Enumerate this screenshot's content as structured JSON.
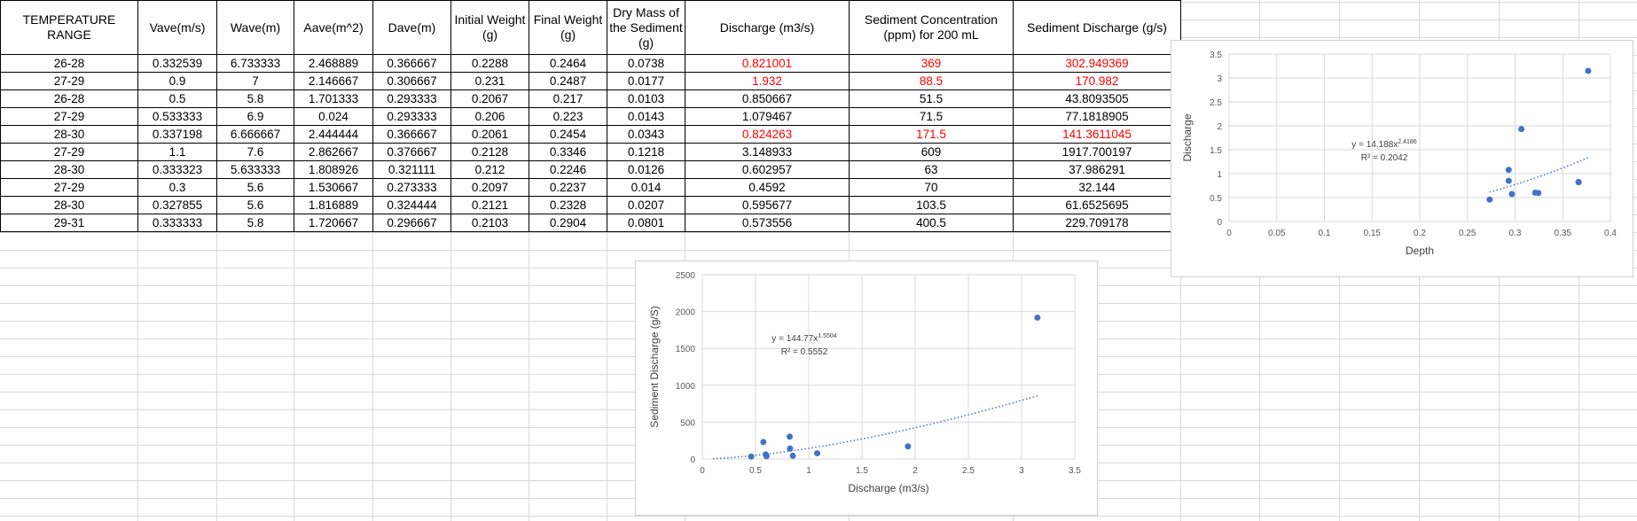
{
  "table": {
    "headers": [
      "TEMPERATURE RANGE",
      "Vave(m/s)",
      "Wave(m)",
      "Aave(m^2)",
      "Dave(m)",
      "Initial Weight (g)",
      "Final Weight (g)",
      "Dry Mass of the Sediment (g)",
      "Discharge (m3/s)",
      "Sediment Concentration (ppm) for 200 mL",
      "Sediment Discharge (g/s)"
    ],
    "rows": [
      [
        "26-28",
        "0.332539",
        "6.733333",
        "2.468889",
        "0.366667",
        "0.2288",
        "0.2464",
        "0.0738",
        "0.821001",
        "369",
        "302.949369"
      ],
      [
        "27-29",
        "0.9",
        "7",
        "2.146667",
        "0.306667",
        "0.231",
        "0.2487",
        "0.0177",
        "1.932",
        "88.5",
        "170.982"
      ],
      [
        "26-28",
        "0.5",
        "5.8",
        "1.701333",
        "0.293333",
        "0.2067",
        "0.217",
        "0.0103",
        "0.850667",
        "51.5",
        "43.8093505"
      ],
      [
        "27-29",
        "0.533333",
        "6.9",
        "0.024",
        "0.293333",
        "0.206",
        "0.223",
        "0.0143",
        "1.079467",
        "71.5",
        "77.1818905"
      ],
      [
        "28-30",
        "0.337198",
        "6.666667",
        "2.444444",
        "0.366667",
        "0.2061",
        "0.2454",
        "0.0343",
        "0.824263",
        "171.5",
        "141.3611045"
      ],
      [
        "27-29",
        "1.1",
        "7.6",
        "2.862667",
        "0.376667",
        "0.2128",
        "0.3346",
        "0.1218",
        "3.148933",
        "609",
        "1917.700197"
      ],
      [
        "28-30",
        "0.333323",
        "5.633333",
        "1.808926",
        "0.321111",
        "0.212",
        "0.2246",
        "0.0126",
        "0.602957",
        "63",
        "37.986291"
      ],
      [
        "27-29",
        "0.3",
        "5.6",
        "1.530667",
        "0.273333",
        "0.2097",
        "0.2237",
        "0.014",
        "0.4592",
        "70",
        "32.144"
      ],
      [
        "28-30",
        "0.327855",
        "5.6",
        "1.816889",
        "0.324444",
        "0.2121",
        "0.2328",
        "0.0207",
        "0.595677",
        "103.5",
        "61.6525695"
      ],
      [
        "29-31",
        "0.333333",
        "5.8",
        "1.720667",
        "0.296667",
        "0.2103",
        "0.2904",
        "0.0801",
        "0.573556",
        "400.5",
        "229.709178"
      ]
    ],
    "red_rows": [
      0,
      1,
      4
    ],
    "red_cols": [
      8,
      9,
      10
    ],
    "red_color": "#ff0000"
  },
  "chart_data": [
    {
      "type": "scatter",
      "xlabel": "Depth",
      "ylabel": "Discharge",
      "xlim": [
        0,
        0.4
      ],
      "ylim": [
        0,
        3.5
      ],
      "xticks": [
        "0",
        "0.05",
        "0.1",
        "0.15",
        "0.2",
        "0.25",
        "0.3",
        "0.35",
        "0.4"
      ],
      "yticks": [
        "0",
        "0.5",
        "1",
        "1.5",
        "2",
        "2.5",
        "3",
        "3.5"
      ],
      "points": [
        {
          "x": 0.366667,
          "y": 0.821001
        },
        {
          "x": 0.306667,
          "y": 1.932
        },
        {
          "x": 0.293333,
          "y": 0.850667
        },
        {
          "x": 0.293333,
          "y": 1.079467
        },
        {
          "x": 0.366667,
          "y": 0.824263
        },
        {
          "x": 0.376667,
          "y": 3.148933
        },
        {
          "x": 0.321111,
          "y": 0.602957
        },
        {
          "x": 0.273333,
          "y": 0.4592
        },
        {
          "x": 0.324444,
          "y": 0.595677
        },
        {
          "x": 0.296667,
          "y": 0.573556
        }
      ],
      "trendline": {
        "type": "power",
        "a": 14.188,
        "b": 2.4186,
        "x_from": 0.273333,
        "x_to": 0.376667
      },
      "equation": "y = 14.188x",
      "exponent": "2.4186",
      "r2": "R² = 0.2042",
      "grid": true,
      "marker_color": "#4472c4"
    },
    {
      "type": "scatter",
      "xlabel": "Discharge (m3/s)",
      "ylabel": "Sediment Discharge (g/S)",
      "xlim": [
        0,
        3.5
      ],
      "ylim": [
        0,
        2500
      ],
      "xticks": [
        "0",
        "0.5",
        "1",
        "1.5",
        "2",
        "2.5",
        "3",
        "3.5"
      ],
      "yticks": [
        "0",
        "500",
        "1000",
        "1500",
        "2000",
        "2500"
      ],
      "points": [
        {
          "x": 0.821001,
          "y": 302.949369
        },
        {
          "x": 1.932,
          "y": 170.982
        },
        {
          "x": 0.850667,
          "y": 43.8093505
        },
        {
          "x": 1.079467,
          "y": 77.1818905
        },
        {
          "x": 0.824263,
          "y": 141.3611045
        },
        {
          "x": 3.148933,
          "y": 1917.700197
        },
        {
          "x": 0.602957,
          "y": 37.986291
        },
        {
          "x": 0.4592,
          "y": 32.144
        },
        {
          "x": 0.595677,
          "y": 61.6525695
        },
        {
          "x": 0.573556,
          "y": 229.709178
        }
      ],
      "trendline": {
        "type": "power",
        "a": 144.77,
        "b": 1.5504,
        "x_from": 0.1,
        "x_to": 3.148933
      },
      "equation": "y = 144.77x",
      "exponent": "1.5504",
      "r2": "R² = 0.5552",
      "grid": true,
      "marker_color": "#4472c4"
    }
  ]
}
